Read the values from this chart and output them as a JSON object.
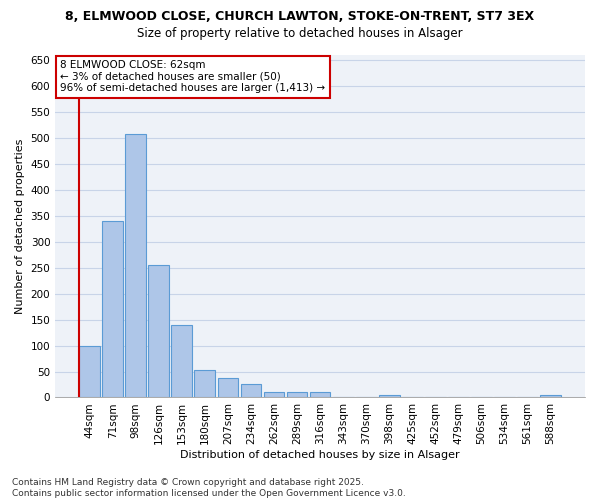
{
  "title_line1": "8, ELMWOOD CLOSE, CHURCH LAWTON, STOKE-ON-TRENT, ST7 3EX",
  "title_line2": "Size of property relative to detached houses in Alsager",
  "xlabel": "Distribution of detached houses by size in Alsager",
  "ylabel": "Number of detached properties",
  "categories": [
    "44sqm",
    "71sqm",
    "98sqm",
    "126sqm",
    "153sqm",
    "180sqm",
    "207sqm",
    "234sqm",
    "262sqm",
    "289sqm",
    "316sqm",
    "343sqm",
    "370sqm",
    "398sqm",
    "425sqm",
    "452sqm",
    "479sqm",
    "506sqm",
    "534sqm",
    "561sqm",
    "588sqm"
  ],
  "values": [
    100,
    340,
    507,
    255,
    140,
    53,
    37,
    25,
    10,
    10,
    10,
    0,
    0,
    5,
    0,
    0,
    0,
    0,
    0,
    0,
    5
  ],
  "bar_color": "#aec6e8",
  "bar_edge_color": "#5b9bd5",
  "annotation_line1": "8 ELMWOOD CLOSE: 62sqm",
  "annotation_line2": "← 3% of detached houses are smaller (50)",
  "annotation_line3": "96% of semi-detached houses are larger (1,413) →",
  "vline_color": "#cc0000",
  "box_color": "#cc0000",
  "ylim": [
    0,
    660
  ],
  "yticks": [
    0,
    50,
    100,
    150,
    200,
    250,
    300,
    350,
    400,
    450,
    500,
    550,
    600,
    650
  ],
  "grid_color": "#c8d4e8",
  "bg_color": "#eef2f8",
  "footnote": "Contains HM Land Registry data © Crown copyright and database right 2025.\nContains public sector information licensed under the Open Government Licence v3.0.",
  "title_fontsize": 9,
  "subtitle_fontsize": 8.5,
  "axis_label_fontsize": 8,
  "tick_fontsize": 7.5,
  "annotation_fontsize": 7.5,
  "footnote_fontsize": 6.5
}
